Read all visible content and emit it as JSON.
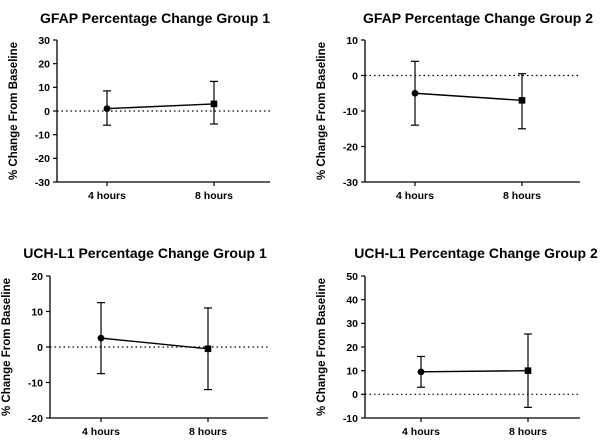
{
  "chart_data": [
    {
      "type": "line",
      "title": "GFAP Percentage Change Group 1",
      "xlabel": "",
      "ylabel": "% Change From Baseline",
      "categories": [
        "4 hours",
        "8 hours"
      ],
      "ylim": [
        -30,
        30
      ],
      "yticks": [
        -30,
        -20,
        -10,
        0,
        10,
        20,
        30
      ],
      "baseline": 0,
      "markers": [
        "circle",
        "square"
      ],
      "values": [
        1,
        3
      ],
      "error_upper": [
        8.5,
        12.5
      ],
      "error_lower": [
        -6,
        -5.5
      ]
    },
    {
      "type": "line",
      "title": "GFAP Percentage Change Group 2",
      "xlabel": "",
      "ylabel": "% Change From Baseline",
      "categories": [
        "4 hours",
        "8 hours"
      ],
      "ylim": [
        -30,
        10
      ],
      "yticks": [
        -30,
        -20,
        -10,
        0,
        10
      ],
      "baseline": 0,
      "markers": [
        "circle",
        "square"
      ],
      "values": [
        -5,
        -7
      ],
      "error_upper": [
        4,
        0.5
      ],
      "error_lower": [
        -14,
        -15
      ]
    },
    {
      "type": "line",
      "title": "UCH-L1 Percentage Change Group 1",
      "xlabel": "",
      "ylabel": "% Change From Baseline",
      "categories": [
        "4 hours",
        "8 hours"
      ],
      "ylim": [
        -20,
        20
      ],
      "yticks": [
        -20,
        -10,
        0,
        10,
        20
      ],
      "baseline": 0,
      "markers": [
        "circle",
        "square"
      ],
      "values": [
        2.5,
        -0.5
      ],
      "error_upper": [
        12.5,
        11
      ],
      "error_lower": [
        -7.5,
        -12
      ]
    },
    {
      "type": "line",
      "title": "UCH-L1 Percentage Change Group 2",
      "xlabel": "",
      "ylabel": "% Change From Baseline",
      "categories": [
        "4 hours",
        "8 hours"
      ],
      "ylim": [
        -10,
        50
      ],
      "yticks": [
        -10,
        0,
        10,
        20,
        30,
        40,
        50
      ],
      "baseline": 0,
      "markers": [
        "circle",
        "square"
      ],
      "values": [
        9.5,
        10
      ],
      "error_upper": [
        16,
        25.5
      ],
      "error_lower": [
        3,
        -5.5
      ]
    }
  ]
}
